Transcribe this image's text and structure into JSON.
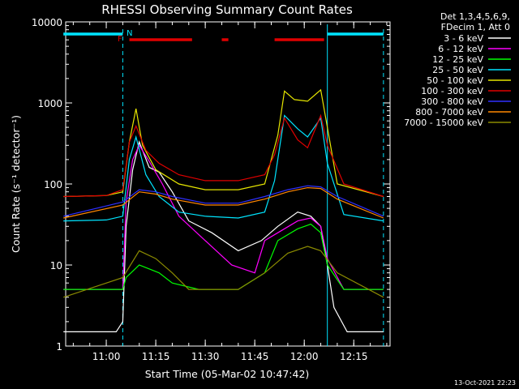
{
  "chart_data": {
    "type": "line",
    "title": "RHESSI Observing Summary Count Rates",
    "xlabel": "Start Time (05-Mar-02 10:47:42)",
    "ylabel": "Count Rate (s⁻¹ detector⁻¹)",
    "x_range_minutes": [
      "10:47:42",
      "12:26:00"
    ],
    "x_ticks": [
      "11:00",
      "11:15",
      "11:30",
      "11:45",
      "12:00",
      "12:15"
    ],
    "y_scale": "log",
    "ylim": [
      1,
      10000
    ],
    "y_ticks": [
      "1",
      "10",
      "100",
      "1000",
      "10000"
    ],
    "legend_header": [
      "Det 1,3,4,5,6,9,",
      "FDecim 1, Att 0"
    ],
    "legend_placement": "right",
    "annotations": {
      "flag_F": "F",
      "flag_N": "N",
      "night_color": "#00e5ff",
      "flare_color": "#e00000",
      "flare_intervals": [
        [
          "11:07",
          "11:26"
        ],
        [
          "11:35",
          "11:37"
        ],
        [
          "11:51",
          "12:06"
        ]
      ],
      "night_intervals": [
        [
          "10:47",
          "11:05"
        ],
        [
          "12:07",
          "12:24"
        ]
      ],
      "dashed_lines": [
        "11:05",
        "12:24"
      ],
      "solid_lines": [
        "12:07"
      ]
    },
    "series": [
      {
        "name": "3 - 6 keV",
        "color": "#ffffff",
        "points": [
          [
            "10:47",
            1.5
          ],
          [
            "11:03",
            1.5
          ],
          [
            "11:05",
            2
          ],
          [
            "11:06",
            30
          ],
          [
            "11:08",
            150
          ],
          [
            "11:10",
            330
          ],
          [
            "11:13",
            160
          ],
          [
            "11:16",
            140
          ],
          [
            "11:20",
            80
          ],
          [
            "11:25",
            35
          ],
          [
            "11:32",
            25
          ],
          [
            "11:40",
            15
          ],
          [
            "11:47",
            20
          ],
          [
            "11:52",
            30
          ],
          [
            "11:58",
            45
          ],
          [
            "12:02",
            40
          ],
          [
            "12:05",
            30
          ],
          [
            "12:07",
            10
          ],
          [
            "12:09",
            3
          ],
          [
            "12:13",
            1.5
          ],
          [
            "12:24",
            1.5
          ]
        ]
      },
      {
        "name": "6 - 12 keV",
        "color": "#ff00ff",
        "points": [
          [
            "10:47",
            5
          ],
          [
            "11:05",
            5
          ],
          [
            "11:06",
            60
          ],
          [
            "11:08",
            200
          ],
          [
            "11:10",
            300
          ],
          [
            "11:13",
            190
          ],
          [
            "11:17",
            100
          ],
          [
            "11:22",
            40
          ],
          [
            "11:30",
            20
          ],
          [
            "11:38",
            10
          ],
          [
            "11:45",
            8
          ],
          [
            "11:48",
            20
          ],
          [
            "11:52",
            25
          ],
          [
            "11:58",
            35
          ],
          [
            "12:02",
            38
          ],
          [
            "12:05",
            30
          ],
          [
            "12:07",
            12
          ],
          [
            "12:12",
            5
          ],
          [
            "12:24",
            5
          ]
        ]
      },
      {
        "name": "12 - 25 keV",
        "color": "#00ff00",
        "points": [
          [
            "10:47",
            5
          ],
          [
            "11:05",
            5
          ],
          [
            "11:06",
            7
          ],
          [
            "11:10",
            10
          ],
          [
            "11:16",
            8
          ],
          [
            "11:20",
            6
          ],
          [
            "11:28",
            5
          ],
          [
            "11:40",
            5
          ],
          [
            "11:48",
            8
          ],
          [
            "11:52",
            20
          ],
          [
            "11:58",
            28
          ],
          [
            "12:02",
            32
          ],
          [
            "12:05",
            25
          ],
          [
            "12:07",
            10
          ],
          [
            "12:12",
            5
          ],
          [
            "12:24",
            5
          ]
        ]
      },
      {
        "name": "25 - 50 keV",
        "color": "#00e5ff",
        "points": [
          [
            "10:47",
            35
          ],
          [
            "11:00",
            36
          ],
          [
            "11:05",
            40
          ],
          [
            "11:07",
            200
          ],
          [
            "11:09",
            380
          ],
          [
            "11:12",
            130
          ],
          [
            "11:16",
            70
          ],
          [
            "11:22",
            45
          ],
          [
            "11:30",
            40
          ],
          [
            "11:40",
            38
          ],
          [
            "11:48",
            45
          ],
          [
            "11:51",
            110
          ],
          [
            "11:54",
            700
          ],
          [
            "11:58",
            480
          ],
          [
            "12:01",
            380
          ],
          [
            "12:05",
            650
          ],
          [
            "12:07",
            180
          ],
          [
            "12:12",
            42
          ],
          [
            "12:24",
            35
          ]
        ]
      },
      {
        "name": "50 - 100 keV",
        "color": "#e6e600",
        "points": [
          [
            "10:47",
            70
          ],
          [
            "11:00",
            72
          ],
          [
            "11:05",
            80
          ],
          [
            "11:07",
            330
          ],
          [
            "11:09",
            850
          ],
          [
            "11:11",
            300
          ],
          [
            "11:15",
            150
          ],
          [
            "11:22",
            100
          ],
          [
            "11:30",
            85
          ],
          [
            "11:40",
            85
          ],
          [
            "11:48",
            100
          ],
          [
            "11:52",
            400
          ],
          [
            "11:54",
            1400
          ],
          [
            "11:57",
            1100
          ],
          [
            "12:01",
            1050
          ],
          [
            "12:05",
            1450
          ],
          [
            "12:07",
            500
          ],
          [
            "12:10",
            100
          ],
          [
            "12:24",
            70
          ]
        ]
      },
      {
        "name": "100 - 300 keV",
        "color": "#e00000",
        "points": [
          [
            "10:47",
            70
          ],
          [
            "11:00",
            72
          ],
          [
            "11:05",
            85
          ],
          [
            "11:07",
            330
          ],
          [
            "11:09",
            520
          ],
          [
            "11:12",
            260
          ],
          [
            "11:16",
            180
          ],
          [
            "11:22",
            130
          ],
          [
            "11:30",
            110
          ],
          [
            "11:40",
            110
          ],
          [
            "11:48",
            130
          ],
          [
            "11:51",
            230
          ],
          [
            "11:54",
            650
          ],
          [
            "11:58",
            350
          ],
          [
            "12:01",
            280
          ],
          [
            "12:05",
            700
          ],
          [
            "12:07",
            300
          ],
          [
            "12:12",
            100
          ],
          [
            "12:24",
            70
          ]
        ]
      },
      {
        "name": "300 - 800 keV",
        "color": "#3030ff",
        "points": [
          [
            "10:47",
            40
          ],
          [
            "11:05",
            60
          ],
          [
            "11:10",
            85
          ],
          [
            "11:15",
            80
          ],
          [
            "11:20",
            70
          ],
          [
            "11:30",
            58
          ],
          [
            "11:40",
            58
          ],
          [
            "11:48",
            70
          ],
          [
            "11:55",
            85
          ],
          [
            "12:01",
            95
          ],
          [
            "12:05",
            92
          ],
          [
            "12:10",
            70
          ],
          [
            "12:24",
            40
          ]
        ]
      },
      {
        "name": "800 - 7000 keV",
        "color": "#ff8800",
        "points": [
          [
            "10:47",
            38
          ],
          [
            "11:05",
            55
          ],
          [
            "11:10",
            80
          ],
          [
            "11:15",
            75
          ],
          [
            "11:20",
            65
          ],
          [
            "11:30",
            55
          ],
          [
            "11:40",
            55
          ],
          [
            "11:48",
            65
          ],
          [
            "11:55",
            80
          ],
          [
            "12:01",
            90
          ],
          [
            "12:05",
            88
          ],
          [
            "12:10",
            65
          ],
          [
            "12:24",
            38
          ]
        ]
      },
      {
        "name": "7000 - 15000 keV",
        "color": "#8b8b00",
        "points": [
          [
            "10:47",
            4
          ],
          [
            "11:05",
            7
          ],
          [
            "11:10",
            15
          ],
          [
            "11:15",
            12
          ],
          [
            "11:20",
            8
          ],
          [
            "11:25",
            5
          ],
          [
            "11:40",
            5
          ],
          [
            "11:48",
            8
          ],
          [
            "11:55",
            14
          ],
          [
            "12:01",
            17
          ],
          [
            "12:05",
            15
          ],
          [
            "12:10",
            8
          ],
          [
            "12:24",
            4
          ]
        ]
      }
    ]
  },
  "footer": {
    "timestamp": "13-Oct-2021 22:23"
  }
}
